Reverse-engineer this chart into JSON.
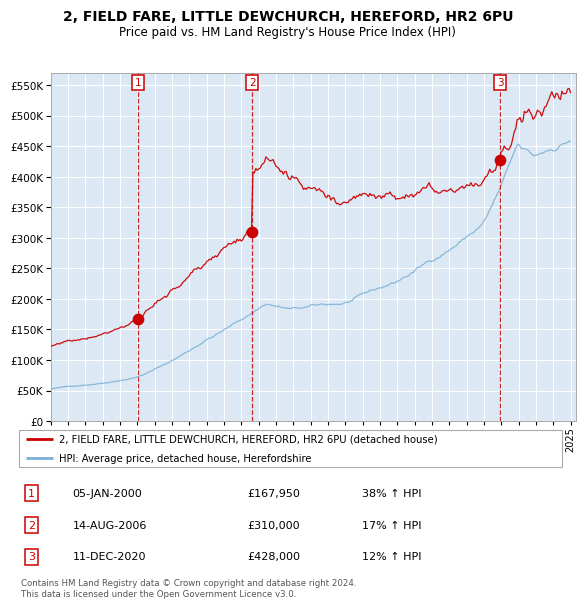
{
  "title": "2, FIELD FARE, LITTLE DEWCHURCH, HEREFORD, HR2 6PU",
  "subtitle": "Price paid vs. HM Land Registry's House Price Index (HPI)",
  "legend_label_red": "2, FIELD FARE, LITTLE DEWCHURCH, HEREFORD, HR2 6PU (detached house)",
  "legend_label_blue": "HPI: Average price, detached house, Herefordshire",
  "transactions": [
    {
      "num": 1,
      "date": "05-JAN-2000",
      "price": 167950,
      "pct": "38%",
      "dir": "↑"
    },
    {
      "num": 2,
      "date": "14-AUG-2006",
      "price": 310000,
      "pct": "17%",
      "dir": "↑"
    },
    {
      "num": 3,
      "date": "11-DEC-2020",
      "price": 428000,
      "pct": "12%",
      "dir": "↑"
    }
  ],
  "transaction_dates_decimal": [
    2000.02,
    2006.62,
    2020.95
  ],
  "transaction_prices": [
    167950,
    310000,
    428000
  ],
  "copyright": "Contains HM Land Registry data © Crown copyright and database right 2024.\nThis data is licensed under the Open Government Licence v3.0.",
  "ylim": [
    0,
    570000
  ],
  "background_color": "#dce9f5",
  "grid_color": "#ffffff",
  "red_line_color": "#cc0000",
  "blue_line_color": "#7bafd4",
  "title_fontsize": 10,
  "subtitle_fontsize": 8.5
}
